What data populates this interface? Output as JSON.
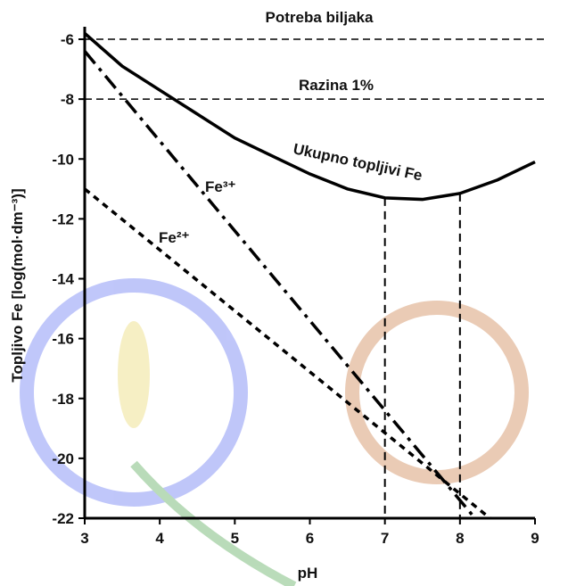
{
  "chart_data": {
    "type": "line",
    "xlabel": "pH",
    "ylabel": "Topljivo Fe [log(mol·dm⁻³)]",
    "xlim": [
      3,
      9
    ],
    "ylim": [
      -22,
      -6
    ],
    "xticks": [
      3,
      4,
      5,
      6,
      7,
      8,
      9
    ],
    "yticks": [
      -22,
      -20,
      -18,
      -16,
      -14,
      -12,
      -10,
      -8,
      -6
    ],
    "series": [
      {
        "name": "Ukupno topljivi Fe",
        "color": "#000000",
        "style": "solid",
        "x": [
          3,
          3.5,
          4,
          4.5,
          5,
          5.5,
          6,
          6.5,
          7,
          7.5,
          8,
          8.5,
          9
        ],
        "values": [
          -5.8,
          -6.9,
          -7.7,
          -8.5,
          -9.3,
          -9.9,
          -10.5,
          -11.0,
          -11.3,
          -11.35,
          -11.15,
          -10.7,
          -10.1
        ]
      },
      {
        "name": "Fe³⁺",
        "color": "#000000",
        "style": "dashdot",
        "x": [
          3,
          8.2
        ],
        "values": [
          -6.4,
          -22
        ]
      },
      {
        "name": "Fe²⁺",
        "color": "#000000",
        "style": "dotted",
        "x": [
          3,
          8.4
        ],
        "values": [
          -11,
          -22
        ]
      }
    ],
    "reference_lines": [
      {
        "y": -6,
        "label": "Potreba biljaka"
      },
      {
        "y": -8,
        "label": "Razina 1%"
      }
    ],
    "vlines": [
      7,
      8
    ]
  }
}
